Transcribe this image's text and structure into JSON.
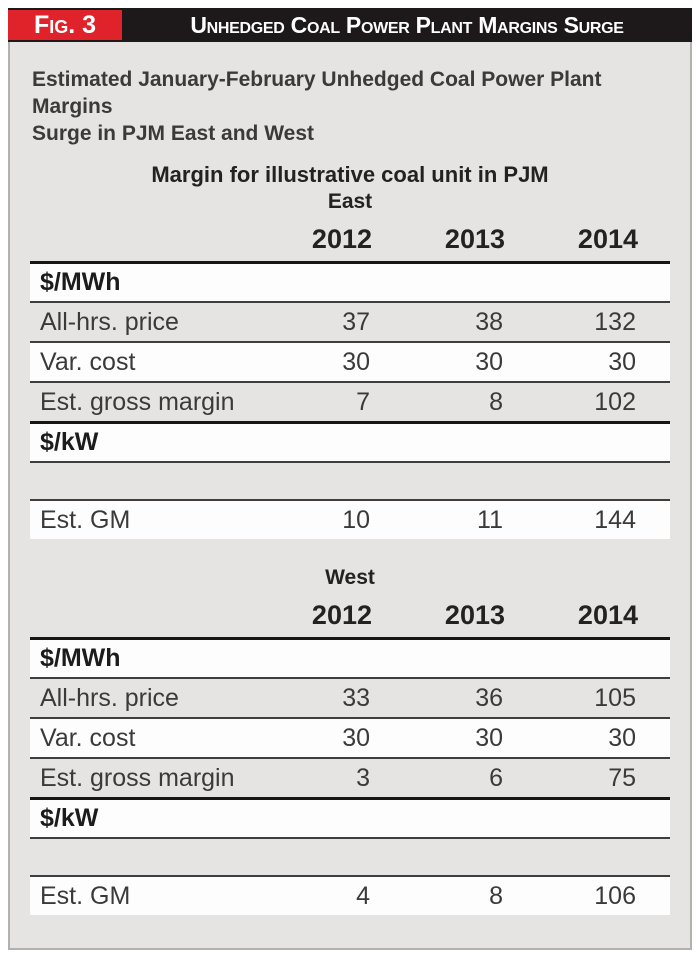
{
  "figure": {
    "fig_label": "Fig. 3",
    "title": "Unhedged Coal Power Plant Margins Surge",
    "subtitle": [
      "Estimated January-February Unhedged Coal Power Plant Margins",
      "Surge in PJM East and West"
    ],
    "table_title": "Margin for illustrative coal unit in PJM"
  },
  "colors": {
    "accent_red": "#e0232b",
    "bar_black": "#1d191a",
    "panel_gray": "#e6e4e2"
  },
  "table": {
    "columns": [
      "2012",
      "2013",
      "2014"
    ],
    "sections": [
      {
        "region": "East",
        "rows": [
          {
            "type": "unit",
            "label": "$/MWh"
          },
          {
            "type": "data",
            "shade": "gray",
            "label": "All-hrs. price",
            "values": [
              "37",
              "38",
              "132"
            ]
          },
          {
            "type": "data",
            "shade": "white",
            "label": "Var. cost",
            "values": [
              "30",
              "30",
              "30"
            ]
          },
          {
            "type": "data",
            "shade": "gray",
            "label": "Est. gross margin",
            "values": [
              "7",
              "8",
              "102"
            ]
          },
          {
            "type": "unit",
            "label": "$/kW"
          },
          {
            "type": "spacer",
            "label": ""
          },
          {
            "type": "data",
            "shade": "white",
            "label": "Est. GM",
            "values": [
              "10",
              "11",
              "144"
            ]
          }
        ]
      },
      {
        "region": "West",
        "rows": [
          {
            "type": "unit",
            "label": "$/MWh"
          },
          {
            "type": "data",
            "shade": "gray",
            "label": "All-hrs. price",
            "values": [
              "33",
              "36",
              "105"
            ]
          },
          {
            "type": "data",
            "shade": "white",
            "label": "Var. cost",
            "values": [
              "30",
              "30",
              "30"
            ]
          },
          {
            "type": "data",
            "shade": "gray",
            "label": "Est. gross margin",
            "values": [
              "3",
              "6",
              "75"
            ]
          },
          {
            "type": "unit",
            "label": "$/kW"
          },
          {
            "type": "spacer",
            "label": ""
          },
          {
            "type": "data",
            "shade": "white",
            "label": "Est. GM",
            "values": [
              "4",
              "8",
              "106"
            ]
          }
        ]
      }
    ]
  }
}
